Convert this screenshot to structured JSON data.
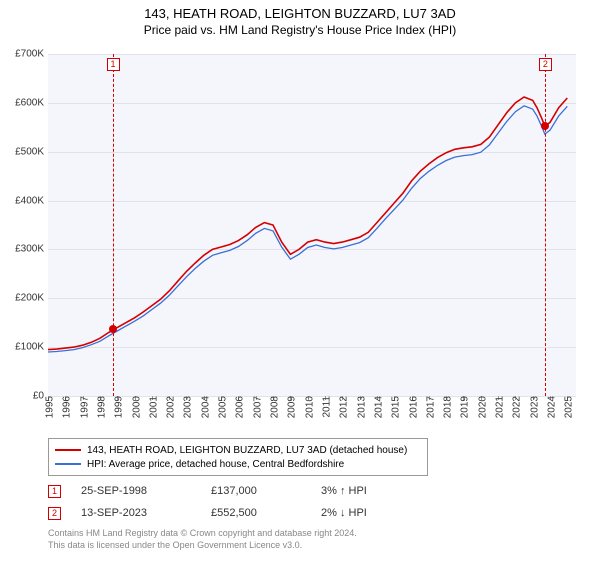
{
  "title_line1": "143, HEATH ROAD, LEIGHTON BUZZARD, LU7 3AD",
  "title_line2": "Price paid vs. HM Land Registry's House Price Index (HPI)",
  "chart": {
    "type": "line",
    "background_color": "#f5f6fb",
    "grid_color": "#e2e2ea",
    "axis_text_color": "#333333",
    "x_years": [
      1995,
      1996,
      1997,
      1998,
      1999,
      2000,
      2001,
      2002,
      2003,
      2004,
      2005,
      2006,
      2007,
      2008,
      2009,
      2010,
      2011,
      2012,
      2013,
      2014,
      2015,
      2016,
      2017,
      2018,
      2019,
      2020,
      2021,
      2022,
      2023,
      2024,
      2025
    ],
    "y_ticks": [
      0,
      100000,
      200000,
      300000,
      400000,
      500000,
      600000,
      700000
    ],
    "y_tick_labels": [
      "£0",
      "£100K",
      "£200K",
      "£300K",
      "£400K",
      "£500K",
      "£600K",
      "£700K"
    ],
    "ylim": [
      0,
      700000
    ],
    "xlim": [
      1995,
      2025.5
    ],
    "series": [
      {
        "name": "property",
        "color": "#d40000",
        "width": 1.6,
        "points": [
          [
            1995.0,
            95000
          ],
          [
            1995.5,
            96000
          ],
          [
            1996.0,
            98000
          ],
          [
            1996.5,
            100000
          ],
          [
            1997.0,
            104000
          ],
          [
            1997.5,
            110000
          ],
          [
            1998.0,
            118000
          ],
          [
            1998.5,
            130000
          ],
          [
            1999.0,
            140000
          ],
          [
            1999.5,
            150000
          ],
          [
            2000.0,
            160000
          ],
          [
            2000.5,
            172000
          ],
          [
            2001.0,
            185000
          ],
          [
            2001.5,
            198000
          ],
          [
            2002.0,
            215000
          ],
          [
            2002.5,
            235000
          ],
          [
            2003.0,
            255000
          ],
          [
            2003.5,
            272000
          ],
          [
            2004.0,
            288000
          ],
          [
            2004.5,
            300000
          ],
          [
            2005.0,
            305000
          ],
          [
            2005.5,
            310000
          ],
          [
            2006.0,
            318000
          ],
          [
            2006.5,
            330000
          ],
          [
            2007.0,
            345000
          ],
          [
            2007.5,
            355000
          ],
          [
            2008.0,
            350000
          ],
          [
            2008.5,
            315000
          ],
          [
            2009.0,
            290000
          ],
          [
            2009.5,
            300000
          ],
          [
            2010.0,
            315000
          ],
          [
            2010.5,
            320000
          ],
          [
            2011.0,
            315000
          ],
          [
            2011.5,
            312000
          ],
          [
            2012.0,
            315000
          ],
          [
            2012.5,
            320000
          ],
          [
            2013.0,
            325000
          ],
          [
            2013.5,
            335000
          ],
          [
            2014.0,
            355000
          ],
          [
            2014.5,
            375000
          ],
          [
            2015.0,
            395000
          ],
          [
            2015.5,
            415000
          ],
          [
            2016.0,
            440000
          ],
          [
            2016.5,
            460000
          ],
          [
            2017.0,
            475000
          ],
          [
            2017.5,
            488000
          ],
          [
            2018.0,
            498000
          ],
          [
            2018.5,
            505000
          ],
          [
            2019.0,
            508000
          ],
          [
            2019.5,
            510000
          ],
          [
            2020.0,
            515000
          ],
          [
            2020.5,
            530000
          ],
          [
            2021.0,
            555000
          ],
          [
            2021.5,
            580000
          ],
          [
            2022.0,
            600000
          ],
          [
            2022.5,
            612000
          ],
          [
            2023.0,
            605000
          ],
          [
            2023.25,
            590000
          ],
          [
            2023.5,
            570000
          ],
          [
            2023.7,
            552500
          ],
          [
            2024.0,
            560000
          ],
          [
            2024.5,
            590000
          ],
          [
            2025.0,
            610000
          ]
        ]
      },
      {
        "name": "hpi",
        "color": "#3a6fd8",
        "width": 1.3,
        "points": [
          [
            1995.0,
            90000
          ],
          [
            1995.5,
            91000
          ],
          [
            1996.0,
            93000
          ],
          [
            1996.5,
            95000
          ],
          [
            1997.0,
            99000
          ],
          [
            1997.5,
            105000
          ],
          [
            1998.0,
            112000
          ],
          [
            1998.5,
            123000
          ],
          [
            1999.0,
            133000
          ],
          [
            1999.5,
            143000
          ],
          [
            2000.0,
            153000
          ],
          [
            2000.5,
            164000
          ],
          [
            2001.0,
            177000
          ],
          [
            2001.5,
            190000
          ],
          [
            2002.0,
            206000
          ],
          [
            2002.5,
            225000
          ],
          [
            2003.0,
            244000
          ],
          [
            2003.5,
            261000
          ],
          [
            2004.0,
            276000
          ],
          [
            2004.5,
            288000
          ],
          [
            2005.0,
            293000
          ],
          [
            2005.5,
            298000
          ],
          [
            2006.0,
            306000
          ],
          [
            2006.5,
            318000
          ],
          [
            2007.0,
            333000
          ],
          [
            2007.5,
            343000
          ],
          [
            2008.0,
            338000
          ],
          [
            2008.5,
            305000
          ],
          [
            2009.0,
            280000
          ],
          [
            2009.5,
            290000
          ],
          [
            2010.0,
            304000
          ],
          [
            2010.5,
            309000
          ],
          [
            2011.0,
            304000
          ],
          [
            2011.5,
            301000
          ],
          [
            2012.0,
            304000
          ],
          [
            2012.5,
            309000
          ],
          [
            2013.0,
            314000
          ],
          [
            2013.5,
            324000
          ],
          [
            2014.0,
            343000
          ],
          [
            2014.5,
            363000
          ],
          [
            2015.0,
            382000
          ],
          [
            2015.5,
            401000
          ],
          [
            2016.0,
            425000
          ],
          [
            2016.5,
            445000
          ],
          [
            2017.0,
            460000
          ],
          [
            2017.5,
            472000
          ],
          [
            2018.0,
            482000
          ],
          [
            2018.5,
            489000
          ],
          [
            2019.0,
            492000
          ],
          [
            2019.5,
            494000
          ],
          [
            2020.0,
            499000
          ],
          [
            2020.5,
            514000
          ],
          [
            2021.0,
            538000
          ],
          [
            2021.5,
            562000
          ],
          [
            2022.0,
            582000
          ],
          [
            2022.5,
            594000
          ],
          [
            2023.0,
            587000
          ],
          [
            2023.25,
            573000
          ],
          [
            2023.5,
            553000
          ],
          [
            2023.7,
            536000
          ],
          [
            2024.0,
            544000
          ],
          [
            2024.5,
            573000
          ],
          [
            2025.0,
            593000
          ]
        ]
      }
    ],
    "event_markers": [
      {
        "id": "1",
        "x": 1998.73,
        "y": 137000,
        "color": "#d40000"
      },
      {
        "id": "2",
        "x": 2023.7,
        "y": 552500,
        "color": "#d40000"
      }
    ],
    "marker_box_border": "#d40000"
  },
  "legend": {
    "items": [
      {
        "color": "#d40000",
        "label": "143, HEATH ROAD, LEIGHTON BUZZARD, LU7 3AD (detached house)"
      },
      {
        "color": "#3a6fd8",
        "label": "HPI: Average price, detached house, Central Bedfordshire"
      }
    ]
  },
  "transactions": [
    {
      "id": "1",
      "date": "25-SEP-1998",
      "price": "£137,000",
      "delta": "3% ↑ HPI"
    },
    {
      "id": "2",
      "date": "13-SEP-2023",
      "price": "£552,500",
      "delta": "2% ↓ HPI"
    }
  ],
  "attribution": {
    "line1": "Contains HM Land Registry data © Crown copyright and database right 2024.",
    "line2": "This data is licensed under the Open Government Licence v3.0."
  }
}
